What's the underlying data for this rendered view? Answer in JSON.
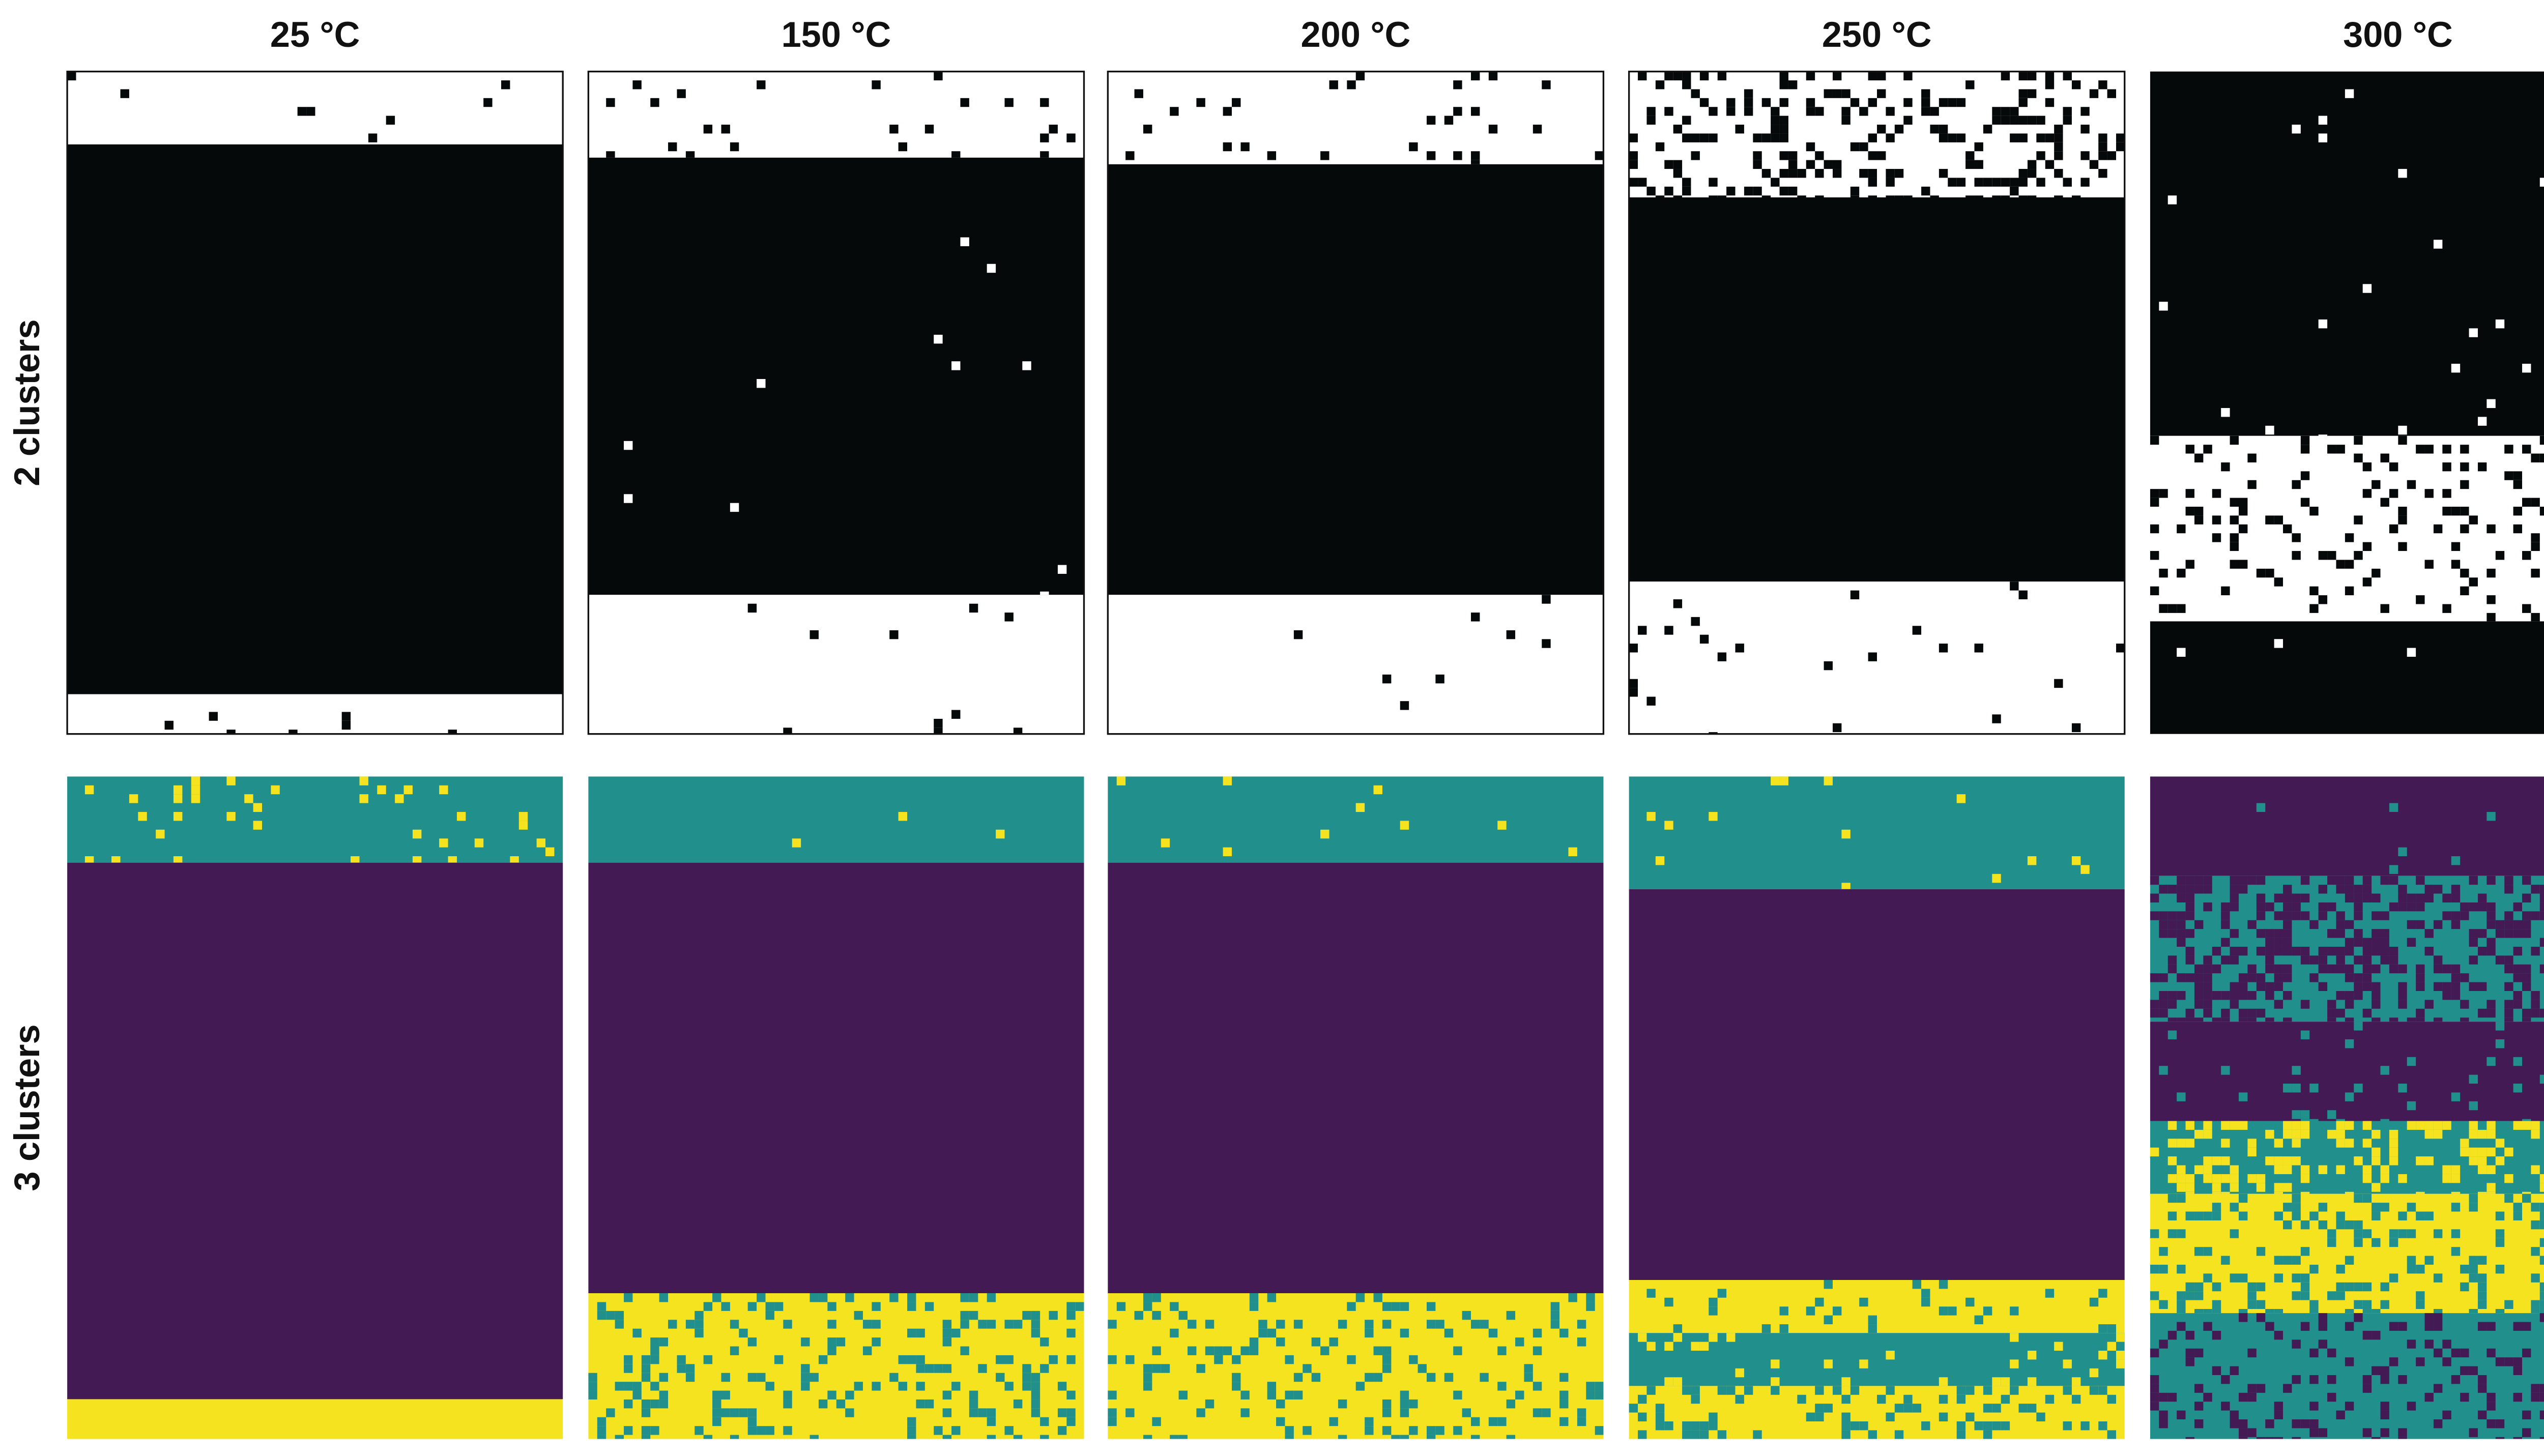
{
  "columns": [
    "25 °C",
    "150 °C",
    "200 °C",
    "250 °C",
    "300 °C"
  ],
  "rows": [
    "2 clusters",
    "3 clusters"
  ]
}
